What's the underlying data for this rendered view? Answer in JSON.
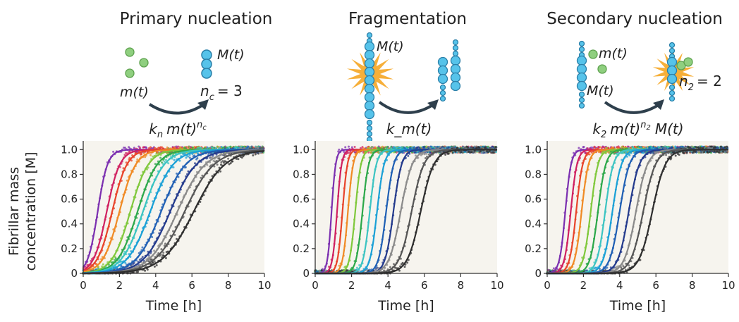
{
  "colors": {
    "monomer": "#8fcf7f",
    "fibril": "#56c3ea",
    "burst": "#f5a623",
    "arrow": "#2e3f4c",
    "plot_bg": "#f6f4ee"
  },
  "mechanisms": [
    {
      "title": "Primary nucleation",
      "labels": {
        "monomer": "m(t)",
        "mass": "M(t)",
        "order": "n",
        "order_sub": "c",
        "order_val": "= 3"
      },
      "rate": {
        "k": "k",
        "k_sub": "n",
        "m": "m(t)",
        "m_sup": "n",
        "m_sup_sub": "c",
        "tail": ""
      }
    },
    {
      "title": "Fragmentation",
      "labels": {
        "mass": "M(t)"
      },
      "rate": {
        "text": "k_m(t)"
      }
    },
    {
      "title": "Secondary nucleation",
      "labels": {
        "monomer": "m(t)",
        "mass": "M(t)",
        "order": "n",
        "order_sub": "2",
        "order_val": "= 2"
      },
      "rate": {
        "k": "k",
        "k_sub": "2",
        "m": "m(t)",
        "m_sup": "n",
        "m_sup_sub": "2",
        "tail": "M(t)"
      }
    }
  ],
  "chart_data": [
    {
      "type": "line",
      "model": "Primary nucleation",
      "xlabel": "Time [h]",
      "ylabel": "Fibrillar mass concentration [M]",
      "xlim": [
        0,
        10
      ],
      "ylim": [
        0,
        1.07
      ],
      "xticks": [
        "0",
        "2",
        "4",
        "6",
        "8",
        "10"
      ],
      "yticks": [
        "0",
        "0.2",
        "0.4",
        "0.6",
        "0.8",
        "1.0"
      ],
      "series": [
        {
          "color": "#7b2fb0",
          "t_half": 0.8,
          "width": 0.6
        },
        {
          "color": "#d02060",
          "t_half": 1.3,
          "width": 0.8
        },
        {
          "color": "#e8442a",
          "t_half": 1.6,
          "width": 0.9
        },
        {
          "color": "#f08a24",
          "t_half": 2.0,
          "width": 1.0
        },
        {
          "color": "#7fc83b",
          "t_half": 2.6,
          "width": 1.1
        },
        {
          "color": "#2ca84a",
          "t_half": 3.0,
          "width": 1.2
        },
        {
          "color": "#3cc4c2",
          "t_half": 3.3,
          "width": 1.3
        },
        {
          "color": "#1aa0d6",
          "t_half": 3.7,
          "width": 1.4
        },
        {
          "color": "#1f5fb4",
          "t_half": 4.3,
          "width": 1.5
        },
        {
          "color": "#233a8c",
          "t_half": 4.8,
          "width": 1.6
        },
        {
          "color": "#8a8a8a",
          "t_half": 5.2,
          "width": 1.7
        },
        {
          "color": "#555555",
          "t_half": 5.6,
          "width": 1.8
        },
        {
          "color": "#2e2e2e",
          "t_half": 6.1,
          "width": 1.9
        }
      ]
    },
    {
      "type": "line",
      "model": "Fragmentation",
      "xlabel": "Time [h]",
      "ylabel": "",
      "xlim": [
        0,
        10
      ],
      "ylim": [
        0,
        1.07
      ],
      "xticks": [
        "0",
        "2",
        "4",
        "6",
        "8",
        "10"
      ],
      "yticks": [
        "0",
        "0.2",
        "0.4",
        "0.6",
        "0.8",
        "1.0"
      ],
      "series": [
        {
          "color": "#7b2fb0",
          "t_half": 0.9,
          "width": 0.25
        },
        {
          "color": "#d02060",
          "t_half": 1.2,
          "width": 0.28
        },
        {
          "color": "#e8442a",
          "t_half": 1.5,
          "width": 0.3
        },
        {
          "color": "#f08a24",
          "t_half": 1.8,
          "width": 0.32
        },
        {
          "color": "#7fc83b",
          "t_half": 2.2,
          "width": 0.35
        },
        {
          "color": "#2ca84a",
          "t_half": 2.6,
          "width": 0.38
        },
        {
          "color": "#3cc4c2",
          "t_half": 3.0,
          "width": 0.4
        },
        {
          "color": "#1aa0d6",
          "t_half": 3.4,
          "width": 0.43
        },
        {
          "color": "#1f5fb4",
          "t_half": 3.9,
          "width": 0.46
        },
        {
          "color": "#233a8c",
          "t_half": 4.3,
          "width": 0.5
        },
        {
          "color": "#8a8a8a",
          "t_half": 4.7,
          "width": 0.7
        },
        {
          "color": "#555555",
          "t_half": 5.3,
          "width": 0.75
        },
        {
          "color": "#2e2e2e",
          "t_half": 5.8,
          "width": 0.8
        }
      ]
    },
    {
      "type": "line",
      "model": "Secondary nucleation",
      "xlabel": "Time [h]",
      "ylabel": "",
      "xlim": [
        0,
        10
      ],
      "ylim": [
        0,
        1.07
      ],
      "xticks": [
        "0",
        "2",
        "4",
        "6",
        "8",
        "10"
      ],
      "yticks": [
        "0",
        "0.2",
        "0.4",
        "0.6",
        "0.8",
        "1.0"
      ],
      "series": [
        {
          "color": "#7b2fb0",
          "t_half": 1.0,
          "width": 0.35
        },
        {
          "color": "#d02060",
          "t_half": 1.3,
          "width": 0.38
        },
        {
          "color": "#e8442a",
          "t_half": 1.6,
          "width": 0.4
        },
        {
          "color": "#f08a24",
          "t_half": 1.9,
          "width": 0.42
        },
        {
          "color": "#7fc83b",
          "t_half": 2.4,
          "width": 0.45
        },
        {
          "color": "#2ca84a",
          "t_half": 2.8,
          "width": 0.48
        },
        {
          "color": "#3cc4c2",
          "t_half": 3.2,
          "width": 0.5
        },
        {
          "color": "#1aa0d6",
          "t_half": 3.6,
          "width": 0.55
        },
        {
          "color": "#1f5fb4",
          "t_half": 4.0,
          "width": 0.6
        },
        {
          "color": "#233a8c",
          "t_half": 4.5,
          "width": 0.65
        },
        {
          "color": "#8a8a8a",
          "t_half": 4.9,
          "width": 0.7
        },
        {
          "color": "#555555",
          "t_half": 5.3,
          "width": 0.75
        },
        {
          "color": "#2e2e2e",
          "t_half": 5.8,
          "width": 0.8
        }
      ]
    }
  ]
}
